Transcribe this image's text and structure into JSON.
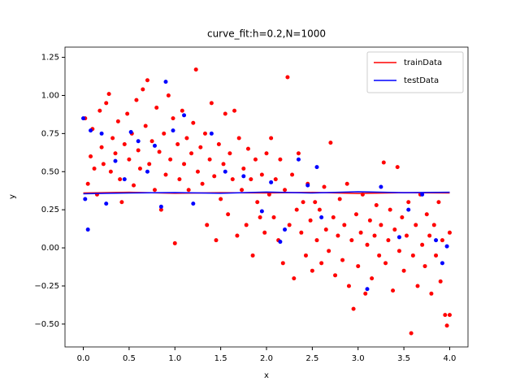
{
  "chart_data": {
    "type": "scatter",
    "title": "curve_fit:h=0.2,N=1000",
    "x_label": "x",
    "y_label": "y",
    "xlim": [
      -0.2,
      4.2
    ],
    "ylim": [
      -0.65,
      1.317
    ],
    "xticks": [
      {
        "value": 0,
        "label": "0.0"
      },
      {
        "value": 0.5,
        "label": "0.5"
      },
      {
        "value": 1,
        "label": "1.0"
      },
      {
        "value": 1.5,
        "label": "1.5"
      },
      {
        "value": 2,
        "label": "2.0"
      },
      {
        "value": 2.5,
        "label": "2.5"
      },
      {
        "value": 3,
        "label": "3.0"
      },
      {
        "value": 3.5,
        "label": "3.5"
      },
      {
        "value": 4,
        "label": "4.0"
      }
    ],
    "yticks": [
      {
        "value": -0.5,
        "label": "−0.50"
      },
      {
        "value": -0.25,
        "label": "−0.25"
      },
      {
        "value": 0,
        "label": "0.00"
      },
      {
        "value": 0.25,
        "label": "0.25"
      },
      {
        "value": 0.5,
        "label": "0.50"
      },
      {
        "value": 0.75,
        "label": "0.75"
      },
      {
        "value": 1,
        "label": "1.00"
      },
      {
        "value": 1.25,
        "label": "1.25"
      }
    ],
    "legend": "upper right",
    "series": [
      {
        "name": "trainData",
        "color": "#ff0000",
        "x": [
          0.02,
          0.05,
          0.08,
          0.1,
          0.12,
          0.15,
          0.18,
          0.2,
          0.22,
          0.25,
          0.28,
          0.3,
          0.32,
          0.35,
          0.38,
          0.4,
          0.42,
          0.45,
          0.48,
          0.5,
          0.53,
          0.55,
          0.58,
          0.6,
          0.62,
          0.65,
          0.68,
          0.7,
          0.72,
          0.75,
          0.78,
          0.8,
          0.83,
          0.85,
          0.88,
          0.9,
          0.93,
          0.95,
          0.98,
          1.0,
          1.03,
          1.05,
          1.08,
          1.1,
          1.13,
          1.15,
          1.18,
          1.2,
          1.23,
          1.25,
          1.28,
          1.3,
          1.33,
          1.35,
          1.38,
          1.4,
          1.43,
          1.45,
          1.48,
          1.5,
          1.53,
          1.55,
          1.58,
          1.6,
          1.63,
          1.65,
          1.68,
          1.7,
          1.73,
          1.75,
          1.78,
          1.8,
          1.83,
          1.85,
          1.88,
          1.9,
          1.93,
          1.95,
          1.98,
          2.0,
          2.03,
          2.05,
          2.08,
          2.1,
          2.13,
          2.15,
          2.18,
          2.2,
          2.23,
          2.25,
          2.28,
          2.3,
          2.33,
          2.35,
          2.38,
          2.4,
          2.43,
          2.45,
          2.48,
          2.5,
          2.53,
          2.55,
          2.58,
          2.6,
          2.63,
          2.65,
          2.68,
          2.7,
          2.73,
          2.75,
          2.78,
          2.8,
          2.83,
          2.85,
          2.88,
          2.9,
          2.93,
          2.95,
          2.98,
          3.0,
          3.03,
          3.05,
          3.08,
          3.1,
          3.13,
          3.15,
          3.18,
          3.2,
          3.23,
          3.25,
          3.28,
          3.3,
          3.33,
          3.35,
          3.38,
          3.4,
          3.43,
          3.45,
          3.48,
          3.5,
          3.53,
          3.55,
          3.58,
          3.6,
          3.63,
          3.65,
          3.68,
          3.7,
          3.73,
          3.75,
          3.78,
          3.8,
          3.83,
          3.85,
          3.88,
          3.9,
          3.92,
          3.95,
          3.97,
          4.0,
          4.0
        ],
        "values": [
          0.85,
          0.42,
          0.6,
          0.78,
          0.52,
          0.35,
          0.9,
          0.66,
          0.55,
          0.95,
          1.01,
          0.5,
          0.72,
          0.62,
          0.83,
          0.45,
          0.3,
          0.68,
          0.88,
          0.58,
          0.75,
          0.41,
          0.97,
          0.64,
          0.52,
          1.04,
          0.8,
          1.1,
          0.55,
          0.7,
          0.38,
          0.92,
          0.63,
          0.25,
          0.75,
          0.48,
          1.0,
          0.58,
          0.85,
          0.03,
          0.68,
          0.45,
          0.9,
          0.55,
          0.72,
          0.38,
          0.62,
          0.82,
          1.17,
          0.5,
          0.66,
          0.42,
          0.75,
          0.15,
          0.58,
          0.95,
          0.47,
          0.05,
          0.68,
          0.32,
          0.55,
          0.88,
          0.22,
          0.62,
          0.45,
          0.9,
          0.08,
          0.72,
          0.38,
          0.52,
          0.15,
          0.65,
          0.45,
          -0.05,
          0.58,
          0.3,
          0.2,
          0.48,
          0.1,
          0.62,
          0.35,
          0.72,
          0.2,
          0.45,
          0.05,
          0.58,
          -0.1,
          0.38,
          1.12,
          0.15,
          0.48,
          -0.2,
          0.25,
          0.62,
          0.1,
          0.3,
          -0.05,
          0.42,
          0.18,
          -0.15,
          0.3,
          0.05,
          0.25,
          -0.1,
          0.4,
          0.12,
          -0.02,
          0.69,
          0.2,
          -0.18,
          0.08,
          0.32,
          -0.08,
          0.15,
          0.42,
          -0.25,
          0.05,
          -0.4,
          0.22,
          -0.12,
          0.1,
          0.35,
          -0.3,
          0.02,
          0.18,
          -0.2,
          0.08,
          0.28,
          -0.05,
          0.15,
          0.56,
          -0.1,
          0.05,
          0.25,
          -0.28,
          0.12,
          0.53,
          -0.02,
          0.2,
          -0.15,
          0.08,
          0.3,
          -0.56,
          -0.05,
          0.15,
          -0.25,
          0.35,
          0.02,
          -0.12,
          0.22,
          0.08,
          -0.3,
          0.15,
          -0.05,
          0.3,
          -0.22,
          0.05,
          -0.44,
          -0.51,
          0.1,
          -0.44
        ],
        "fit": {
          "x": [
            0,
            0.5,
            1,
            1.5,
            2,
            2.5,
            3,
            3.5,
            4
          ],
          "values": [
            0.36,
            0.365,
            0.358,
            0.362,
            0.36,
            0.364,
            0.357,
            0.362,
            0.36
          ]
        }
      },
      {
        "name": "testData",
        "color": "#0000ff",
        "x": [
          0.0,
          0.02,
          0.05,
          0.08,
          0.2,
          0.25,
          0.35,
          0.45,
          0.52,
          0.6,
          0.7,
          0.78,
          0.85,
          0.9,
          0.98,
          1.1,
          1.2,
          1.4,
          1.55,
          1.75,
          1.95,
          2.05,
          2.15,
          2.2,
          2.35,
          2.45,
          2.55,
          2.6,
          3.1,
          3.25,
          3.45,
          3.55,
          3.7,
          3.85,
          3.92,
          3.97
        ],
        "values": [
          0.85,
          0.32,
          0.12,
          0.77,
          0.75,
          0.29,
          0.57,
          0.45,
          0.76,
          0.7,
          0.5,
          0.67,
          0.27,
          1.09,
          0.77,
          0.87,
          0.29,
          0.75,
          0.5,
          0.47,
          0.24,
          0.43,
          0.04,
          0.12,
          0.58,
          0.41,
          0.53,
          0.2,
          -0.27,
          0.4,
          0.07,
          0.25,
          0.35,
          0.05,
          -0.1,
          0.01
        ],
        "fit": {
          "x": [
            0,
            0.5,
            1,
            1.5,
            2,
            2.5,
            3,
            3.5,
            4
          ],
          "values": [
            0.355,
            0.36,
            0.363,
            0.358,
            0.366,
            0.36,
            0.368,
            0.362,
            0.365
          ]
        }
      }
    ]
  }
}
